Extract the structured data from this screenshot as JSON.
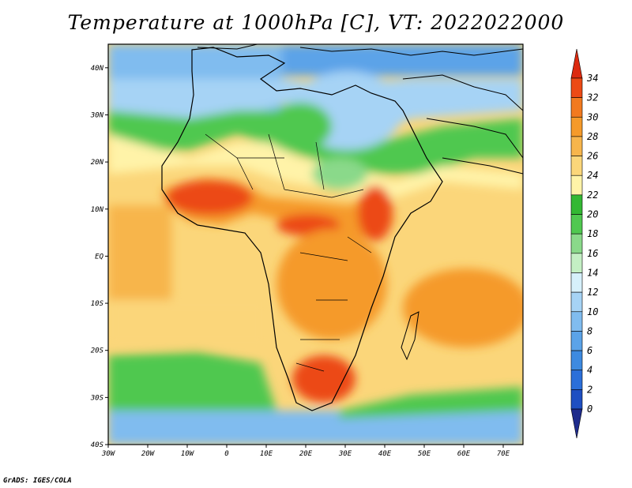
{
  "title": "Temperature at 1000hPa [C], VT: 2022022000",
  "credit": "GrADS: IGES/COLA",
  "map": {
    "projection": "latlon",
    "lon_range": [
      -30,
      75
    ],
    "lat_range": [
      -40,
      45
    ],
    "lon_ticks": [
      {
        "value": -30,
        "label": "30W"
      },
      {
        "value": -20,
        "label": "20W"
      },
      {
        "value": -10,
        "label": "10W"
      },
      {
        "value": 0,
        "label": "0"
      },
      {
        "value": 10,
        "label": "10E"
      },
      {
        "value": 20,
        "label": "20E"
      },
      {
        "value": 30,
        "label": "30E"
      },
      {
        "value": 40,
        "label": "40E"
      },
      {
        "value": 50,
        "label": "50E"
      },
      {
        "value": 60,
        "label": "60E"
      },
      {
        "value": 70,
        "label": "70E"
      }
    ],
    "lat_ticks": [
      {
        "value": 40,
        "label": "40N"
      },
      {
        "value": 30,
        "label": "30N"
      },
      {
        "value": 20,
        "label": "20N"
      },
      {
        "value": 10,
        "label": "10N"
      },
      {
        "value": 0,
        "label": "EQ"
      },
      {
        "value": -10,
        "label": "10S"
      },
      {
        "value": -20,
        "label": "20S"
      },
      {
        "value": -30,
        "label": "30S"
      },
      {
        "value": -40,
        "label": "40S"
      }
    ]
  },
  "colorbar": {
    "labels": [
      "0",
      "2",
      "4",
      "6",
      "8",
      "10",
      "12",
      "14",
      "16",
      "18",
      "20",
      "22",
      "24",
      "26",
      "28",
      "30",
      "32",
      "34"
    ],
    "colors": [
      "#1e2b8c",
      "#1e4fc2",
      "#2b6fd9",
      "#3d8ae0",
      "#5ba3e8",
      "#80bcef",
      "#a6d3f5",
      "#d6f0fb",
      "#c4efc4",
      "#8ad98a",
      "#50c850",
      "#33b833",
      "#fff3a8",
      "#fbd67a",
      "#f7b54c",
      "#f59a2a",
      "#f27a1f",
      "#ec4a15",
      "#dc2a10"
    ]
  }
}
